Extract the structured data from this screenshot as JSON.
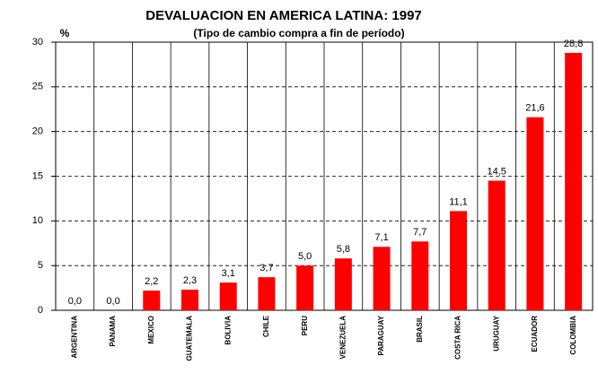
{
  "chart_data": {
    "type": "bar",
    "title": "DEVALUACION EN AMERICA LATINA: 1997",
    "subtitle": "(Tipo de cambio compra a fin de período)",
    "y_label": "%",
    "categories": [
      "ARGENTINA",
      "PANAMA",
      "MEXICO",
      "GUATEMALA",
      "BOLIVIA",
      "CHILE",
      "PERU",
      "VENEZUELA",
      "PARAGUAY",
      "BRASIL",
      "COSTA RICA",
      "URUGUAY",
      "ECUADOR",
      "COLOMBIA"
    ],
    "values": [
      0.0,
      0.0,
      2.2,
      2.3,
      3.1,
      3.7,
      5.0,
      5.8,
      7.1,
      7.7,
      11.1,
      14.5,
      21.6,
      28.8
    ],
    "value_labels": [
      "0,0",
      "0,0",
      "2,2",
      "2,3",
      "3,1",
      "3,7",
      "5,0",
      "5,8",
      "7,1",
      "7,7",
      "11,1",
      "14,5",
      "21,6",
      "28,8"
    ],
    "color": "#ff0000",
    "ylim": [
      0,
      30
    ],
    "yticks": [
      0,
      5,
      10,
      15,
      20,
      25,
      30
    ],
    "grid": true
  }
}
